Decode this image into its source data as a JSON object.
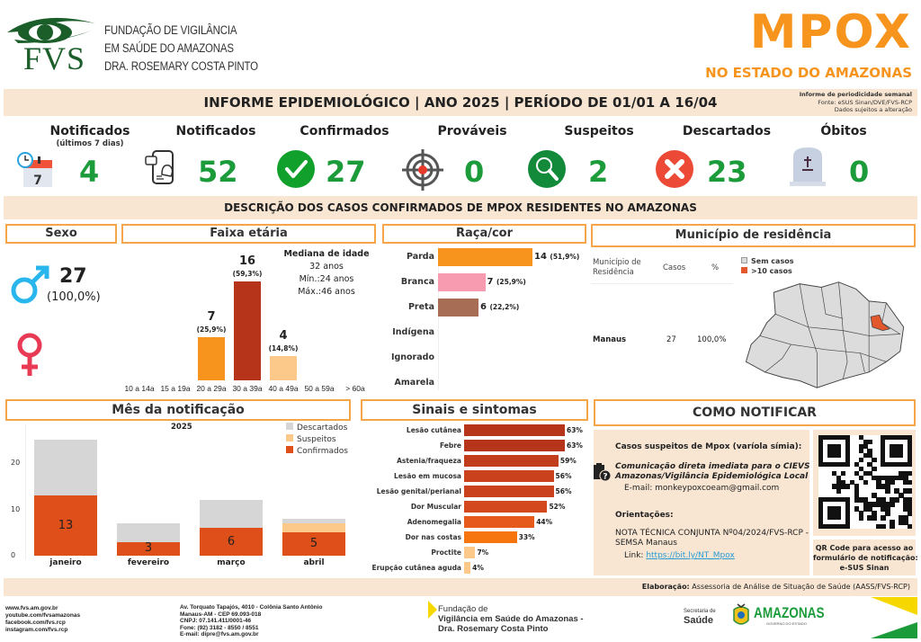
{
  "header": {
    "logo_letters": "FVS",
    "org_lines": [
      "FUNDAÇÃO DE VIGILÂNCIA",
      "EM SAÚDE DO AMAZONAS",
      "DRA. ROSEMARY COSTA PINTO"
    ],
    "title": "MPOX",
    "subtitle": "NO ESTADO DO AMAZONAS"
  },
  "info_bar": {
    "main": "INFORME EPIDEMIOLÓGICO | ANO 2025 | PERÍODO DE 01/01 A 16/04",
    "meta": [
      "Informe de periodicidade semanal",
      "Fonte: eSUS Sinan/DVE/FVS-RCP",
      "Dados sujeitos a alteração"
    ]
  },
  "kpis": [
    {
      "label": "Notificados",
      "sub": "(últimos 7 dias)",
      "value": "4",
      "icon": "calendar-clock-icon"
    },
    {
      "label": "Notificados",
      "sub": "",
      "value": "52",
      "icon": "phone-notification-icon"
    },
    {
      "label": "Confirmados",
      "sub": "",
      "value": "27",
      "icon": "check-circle-icon"
    },
    {
      "label": "Prováveis",
      "sub": "",
      "value": "0",
      "icon": "target-icon"
    },
    {
      "label": "Suspeitos",
      "sub": "",
      "value": "2",
      "icon": "magnifier-icon"
    },
    {
      "label": "Descartados",
      "sub": "",
      "value": "23",
      "icon": "x-circle-icon"
    },
    {
      "label": "Óbitos",
      "sub": "",
      "value": "0",
      "icon": "tombstone-icon"
    }
  ],
  "description_title": "DESCRIÇÃO DOS CASOS CONFIRMADOS DE MPOX RESIDENTES NO AMAZONAS",
  "sexo": {
    "title": "Sexo",
    "male_count": "27",
    "male_pct": "(100,0%)"
  },
  "faixa": {
    "title": "Faixa etária",
    "median_title": "Mediana de idade",
    "median": "32 anos",
    "min": "Mín.:24 anos",
    "max": "Máx.:46 anos"
  },
  "raca": {
    "title": "Raça/cor"
  },
  "municipio": {
    "title": "Município de residência",
    "col_headers": [
      "Município de Residência",
      "Casos",
      "%"
    ],
    "rows": [
      {
        "name": "Manaus",
        "cases": "27",
        "pct": "100,0%"
      }
    ],
    "legend": [
      "Sem casos",
      ">10 casos"
    ],
    "colors": {
      "none": "#dcdcdc",
      "high": "#e2572b"
    }
  },
  "mes": {
    "title": "Mês da notificação"
  },
  "sinais": {
    "title": "Sinais e sintomas"
  },
  "como": {
    "title": "COMO NOTIFICAR",
    "suspect_title": "Casos suspeitos de Mpox (varíola símia):",
    "comm_line1": "Comunicação direta imediata para o CIEVS",
    "comm_line2": "Amazonas/Vigilância Epidemiológica Local",
    "email": "E-mail:  monkeypoxcoeam@gmail.com",
    "orient_title": "Orientações:",
    "nota_line1": "NOTA TÉCNICA CONJUNTA Nº04/2024/FVS-RCP -",
    "nota_line2": "SEMSA Manaus",
    "link_label": "Link: ",
    "link": "https://bit.ly/NT_Mpox",
    "qr_caption": [
      "QR Code para acesso ao",
      "formulário de notificação:",
      "e-SUS Sinan"
    ]
  },
  "elaboracao_label": "Elaboração:",
  "elaboracao_text": " Assessoria de Análise de Situação de Saúde (AASS/FVS-RCP)",
  "footer": {
    "web": [
      "www.fvs.am.gov.br",
      "youtube.com/fvsamazonas",
      "facebook.com/fvs.rcp",
      "instagram.com/fvs.rcp"
    ],
    "address": [
      "Av. Torquato Tapajós, 4010 - Colônia Santo Antônio",
      "Manaus-AM - CEP 69.093-018",
      "CNPJ: 07.141.411/0001-46",
      "Fone: (92) 3182 - 8550 / 8551",
      "E-mail: dipre@fvs.am.gov.br"
    ],
    "fvs_lines": [
      "Fundação de",
      "Vigilância em Saúde do Amazonas -",
      "Dra. Rosemary Costa Pinto"
    ],
    "sec_small": "Secretaria de",
    "sec_big": "Saúde",
    "amazonas": "AMAZONAS",
    "gov": "GOVERNO DO ESTADO"
  },
  "chart_data": [
    {
      "type": "bar",
      "title": "Faixa etária",
      "categories": [
        "10 a 14a",
        "15 a 19a",
        "20 a 29a",
        "30 a 39a",
        "40 a 49a",
        "50 a 59a",
        "> 60a"
      ],
      "values": [
        0,
        0,
        7,
        16,
        4,
        0,
        0
      ],
      "labels_pct": [
        "",
        "",
        "(25,9%)",
        "(59,3%)",
        "(14,8%)",
        "",
        ""
      ],
      "colors": [
        "#f7941d",
        "#f7941d",
        "#f7941d",
        "#b5341a",
        "#fdc98a",
        "#f7941d",
        "#f7941d"
      ]
    },
    {
      "type": "bar",
      "orientation": "horizontal",
      "title": "Raça/cor",
      "categories": [
        "Parda",
        "Branca",
        "Preta",
        "Indígena",
        "Ignorado",
        "Amarela"
      ],
      "values": [
        14,
        7,
        6,
        0,
        0,
        0
      ],
      "labels_pct": [
        "(51,9%)",
        "(25,9%)",
        "(22,2%)",
        "",
        "",
        ""
      ],
      "colors": [
        "#f7941d",
        "#f79cb0",
        "#a86d55",
        "#ccc",
        "#ccc",
        "#ccc"
      ]
    },
    {
      "type": "bar",
      "stacked": true,
      "title": "Mês da notificação",
      "subtitle": "2025",
      "categories": [
        "janeiro",
        "fevereiro",
        "março",
        "abril"
      ],
      "series": [
        {
          "name": "Confirmados",
          "values": [
            13,
            3,
            6,
            5
          ],
          "color": "#de4f1a"
        },
        {
          "name": "Suspeitos",
          "values": [
            0,
            0,
            0,
            2
          ],
          "color": "#fdc98a"
        },
        {
          "name": "Descartados",
          "values": [
            12,
            4,
            6,
            1
          ],
          "color": "#d6d6d6"
        }
      ],
      "legend_order": [
        "Descartados",
        "Suspeitos",
        "Confirmados"
      ],
      "yticks": [
        0,
        10,
        20
      ],
      "ylim": [
        0,
        27
      ],
      "legend": "top-right"
    },
    {
      "type": "bar",
      "orientation": "horizontal",
      "title": "Sinais e sintomas",
      "categories": [
        "Lesão cutânea",
        "Febre",
        "Astenia/fraqueza",
        "Lesão em mucosa",
        "Lesão genital/perianal",
        "Dor Muscular",
        "Adenomegalia",
        "Dor nas costas",
        "Proctite",
        "Erupção cutânea aguda"
      ],
      "values": [
        63,
        63,
        59,
        56,
        56,
        52,
        44,
        33,
        7,
        4
      ],
      "unit": "%",
      "colors": [
        "#b5341a",
        "#b5341a",
        "#c23d1c",
        "#c9411d",
        "#c9411d",
        "#d4481d",
        "#e65a1c",
        "#f7750f",
        "#fdc98a",
        "#fdc98a"
      ]
    }
  ]
}
